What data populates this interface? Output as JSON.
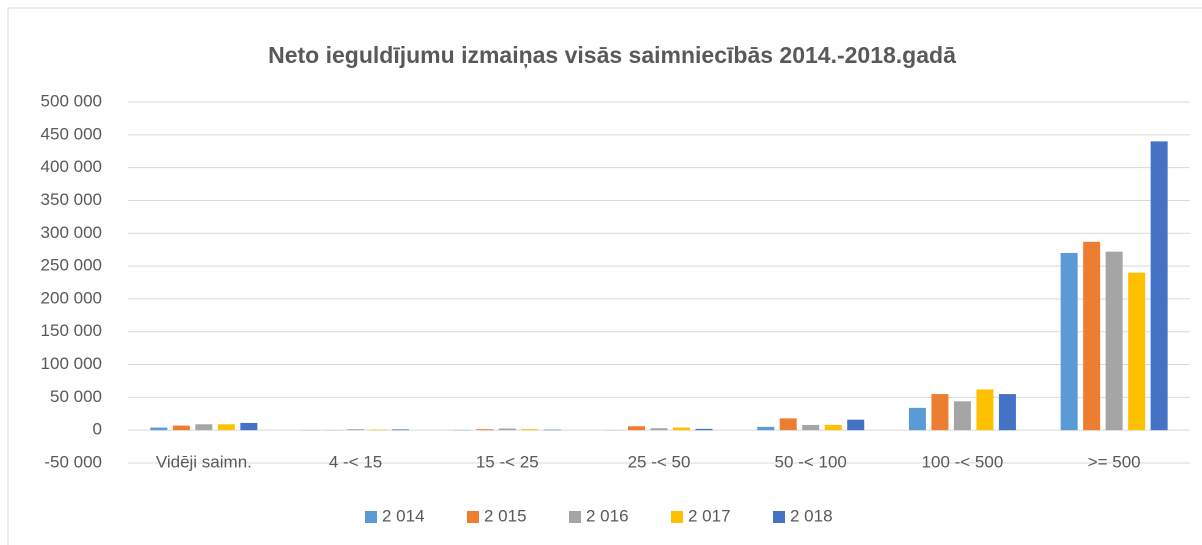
{
  "chart_data": {
    "type": "bar",
    "title": "Neto ieguldījumu izmaiņas visās saimniecībās 2014.-2018.gadā",
    "categories": [
      "Vidēji saimn.",
      "4 -< 15",
      "15 -< 25",
      "25 -< 50",
      "50 -< 100",
      "100 -< 500",
      ">= 500"
    ],
    "series": [
      {
        "name": "2 014",
        "color": "#5b9bd5",
        "values": [
          4000,
          300,
          400,
          200,
          5000,
          34000,
          270000
        ]
      },
      {
        "name": "2 015",
        "color": "#ed7d31",
        "values": [
          7000,
          200,
          1500,
          6000,
          18000,
          55000,
          287000
        ]
      },
      {
        "name": "2 016",
        "color": "#a5a5a5",
        "values": [
          9000,
          1500,
          2500,
          3000,
          8000,
          44000,
          272000
        ]
      },
      {
        "name": "2 017",
        "color": "#ffc000",
        "values": [
          9000,
          1000,
          1500,
          4000,
          8000,
          62000,
          240000
        ]
      },
      {
        "name": "2 018",
        "color": "#4472c4",
        "values": [
          11000,
          1200,
          800,
          2000,
          16000,
          55000,
          440000
        ]
      }
    ],
    "ylim": [
      -50000,
      500000
    ],
    "yticks": [
      {
        "value": -50000,
        "label": "-50 000"
      },
      0,
      {
        "value": 50000,
        "label": "50 000"
      },
      {
        "value": 100000,
        "label": "100 000"
      },
      {
        "value": 150000,
        "label": "150 000"
      },
      {
        "value": 200000,
        "label": "200 000"
      },
      {
        "value": 250000,
        "label": "250 000"
      },
      {
        "value": 300000,
        "label": "300 000"
      },
      {
        "value": 350000,
        "label": "350 000"
      },
      {
        "value": 400000,
        "label": "400 000"
      },
      {
        "value": 450000,
        "label": "450 000"
      },
      {
        "value": 500000,
        "label": "500 000"
      }
    ],
    "grid": true,
    "legend": "bottom"
  }
}
